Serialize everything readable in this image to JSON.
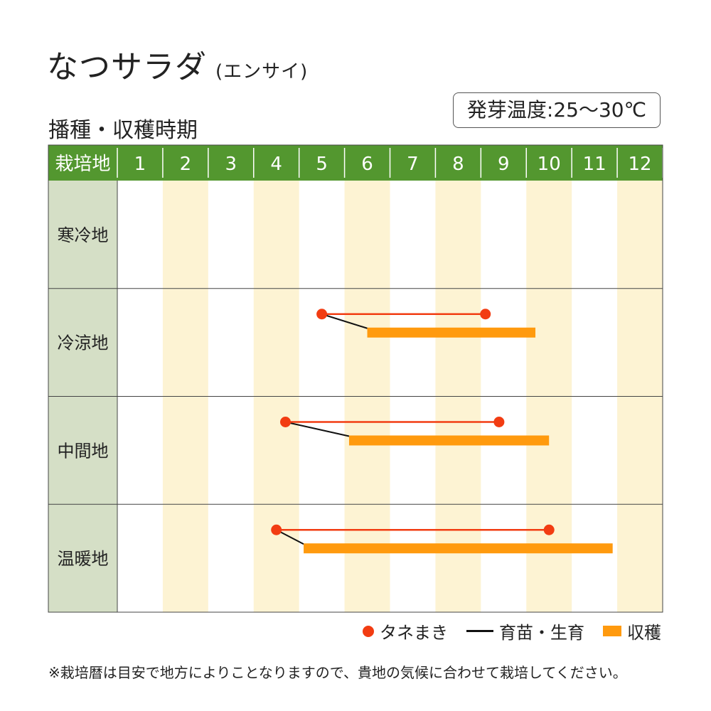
{
  "title": "なつサラダ",
  "title_sub": "(エンサイ)",
  "subtitle": "播種・収穫時期",
  "temp_label": "発芽温度:25〜30℃",
  "note": "※栽培暦は目安で地方によりことなりますので、貴地の気候に合わせて栽培してください。",
  "legend": {
    "sowing": "タネまき",
    "growing": "育苗・生育",
    "harvest": "収穫"
  },
  "colors": {
    "header_green": "#53972f",
    "region_bg": "#d5dfc6",
    "stripe": "#fdf3d3",
    "sowing": "#f23c12",
    "harvest": "#ff9a0e",
    "growing": "#111111"
  },
  "chart_data": {
    "type": "gantt",
    "header_label": "栽培地",
    "months": [
      "1",
      "2",
      "3",
      "4",
      "5",
      "6",
      "7",
      "8",
      "9",
      "10",
      "11",
      "12"
    ],
    "rows": [
      {
        "region": "寒冷地",
        "sowing": null,
        "harvest": null
      },
      {
        "region": "冷涼地",
        "sowing": [
          5.5,
          9.1
        ],
        "harvest": [
          6.5,
          10.2
        ]
      },
      {
        "region": "中間地",
        "sowing": [
          4.7,
          9.4
        ],
        "harvest": [
          6.1,
          10.5
        ]
      },
      {
        "region": "温暖地",
        "sowing": [
          4.5,
          10.5
        ],
        "harvest": [
          5.1,
          11.9
        ]
      }
    ]
  }
}
